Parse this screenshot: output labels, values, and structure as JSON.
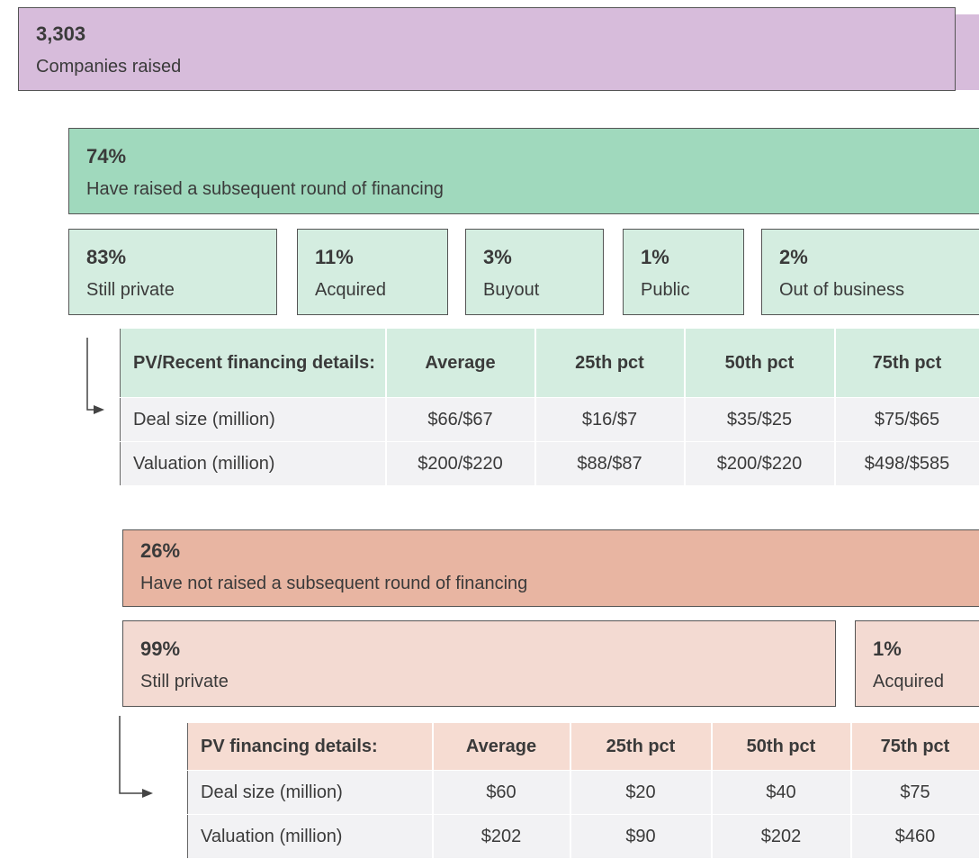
{
  "total": {
    "value": "3,303",
    "label": "Companies raised"
  },
  "raised": {
    "value": "74%",
    "label": "Have raised a subsequent round of financing",
    "outcomes": [
      {
        "value": "83%",
        "label": "Still private"
      },
      {
        "value": "11%",
        "label": "Acquired"
      },
      {
        "value": "3%",
        "label": "Buyout"
      },
      {
        "value": "1%",
        "label": "Public"
      },
      {
        "value": "2%",
        "label": "Out of business"
      }
    ],
    "table": {
      "header": [
        "PV/Recent financing details:",
        "Average",
        "25th pct",
        "50th pct",
        "75th pct"
      ],
      "rows": [
        [
          "Deal size (million)",
          "$66/$67",
          "$16/$7",
          "$35/$25",
          "$75/$65"
        ],
        [
          "Valuation (million)",
          "$200/$220",
          "$88/$87",
          "$200/$220",
          "$498/$585"
        ]
      ]
    }
  },
  "not_raised": {
    "value": "26%",
    "label": "Have not raised a subsequent round of financing",
    "outcomes": [
      {
        "value": "99%",
        "label": "Still private"
      },
      {
        "value": "1%",
        "label": "Acquired"
      }
    ],
    "table": {
      "header": [
        "PV financing details:",
        "Average",
        "25th pct",
        "50th pct",
        "75th pct"
      ],
      "rows": [
        [
          "Deal size (million)",
          "$60",
          "$20",
          "$40",
          "$75"
        ],
        [
          "Valuation (million)",
          "$202",
          "$90",
          "$202",
          "$460"
        ]
      ]
    }
  }
}
